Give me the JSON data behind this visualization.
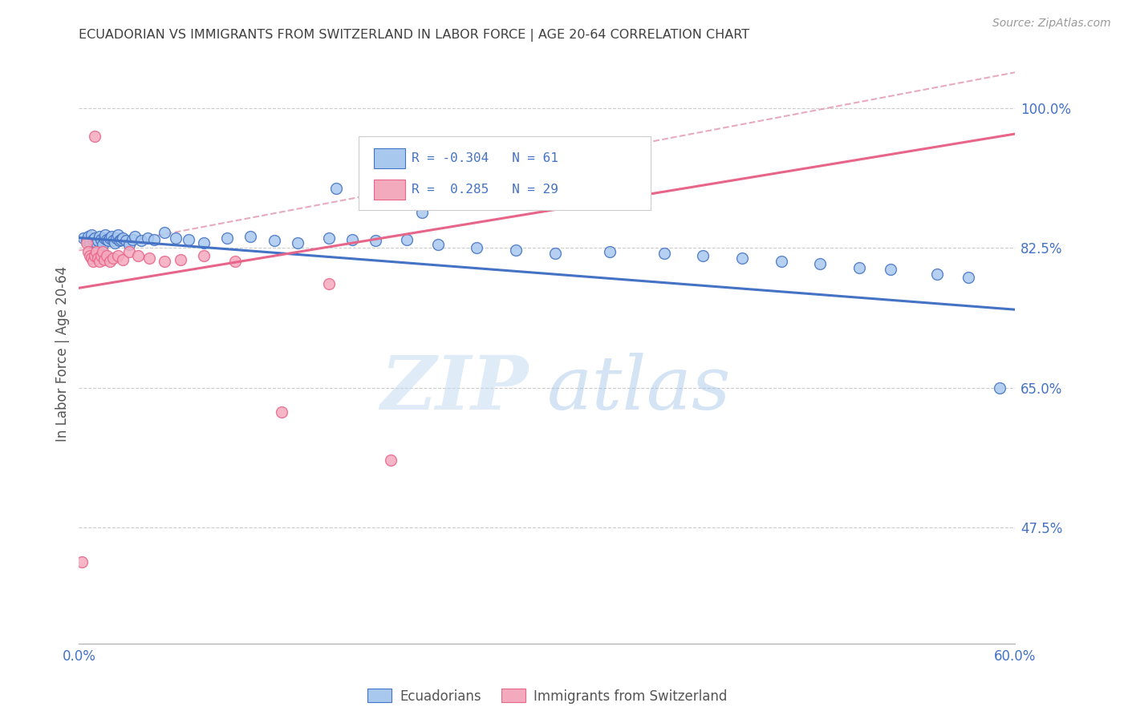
{
  "title": "ECUADORIAN VS IMMIGRANTS FROM SWITZERLAND IN LABOR FORCE | AGE 20-64 CORRELATION CHART",
  "source": "Source: ZipAtlas.com",
  "ylabel": "In Labor Force | Age 20-64",
  "xlim": [
    0.0,
    0.6
  ],
  "ylim": [
    0.33,
    1.055
  ],
  "yticks": [
    0.475,
    0.65,
    0.825,
    1.0
  ],
  "ytick_labels": [
    "47.5%",
    "65.0%",
    "82.5%",
    "100.0%"
  ],
  "xticks": [
    0.0,
    0.1,
    0.2,
    0.3,
    0.4,
    0.5,
    0.6
  ],
  "blue_R": "-0.304",
  "blue_N": "61",
  "pink_R": "0.285",
  "pink_N": "29",
  "blue_color": "#A8C8EE",
  "pink_color": "#F4AABD",
  "blue_line_color": "#4472C4",
  "pink_line_color": "#E8658A",
  "dash_line_color": "#E8AABD",
  "legend_label_blue": "Ecuadorians",
  "legend_label_pink": "Immigrants from Switzerland",
  "title_color": "#404040",
  "axis_color": "#4472C4",
  "watermark_zip": "ZIP",
  "watermark_atlas": "atlas",
  "blue_scatter_x": [
    0.003,
    0.005,
    0.006,
    0.007,
    0.008,
    0.009,
    0.01,
    0.011,
    0.012,
    0.013,
    0.014,
    0.015,
    0.016,
    0.017,
    0.018,
    0.019,
    0.02,
    0.021,
    0.022,
    0.023,
    0.024,
    0.025,
    0.026,
    0.027,
    0.028,
    0.03,
    0.032,
    0.034,
    0.036,
    0.04,
    0.044,
    0.048,
    0.055,
    0.062,
    0.07,
    0.08,
    0.095,
    0.11,
    0.125,
    0.14,
    0.16,
    0.175,
    0.19,
    0.21,
    0.23,
    0.255,
    0.28,
    0.305,
    0.34,
    0.375,
    0.4,
    0.425,
    0.45,
    0.475,
    0.5,
    0.52,
    0.55,
    0.57,
    0.59,
    0.22,
    0.165
  ],
  "blue_scatter_y": [
    0.838,
    0.835,
    0.84,
    0.833,
    0.842,
    0.836,
    0.838,
    0.832,
    0.835,
    0.84,
    0.836,
    0.83,
    0.838,
    0.842,
    0.836,
    0.835,
    0.838,
    0.84,
    0.835,
    0.832,
    0.838,
    0.842,
    0.835,
    0.836,
    0.838,
    0.835,
    0.83,
    0.836,
    0.84,
    0.835,
    0.838,
    0.836,
    0.845,
    0.838,
    0.836,
    0.832,
    0.838,
    0.84,
    0.835,
    0.832,
    0.838,
    0.836,
    0.835,
    0.836,
    0.83,
    0.825,
    0.822,
    0.818,
    0.82,
    0.818,
    0.815,
    0.812,
    0.808,
    0.805,
    0.8,
    0.798,
    0.792,
    0.788,
    0.65,
    0.87,
    0.9
  ],
  "pink_scatter_x": [
    0.002,
    0.005,
    0.006,
    0.007,
    0.008,
    0.009,
    0.01,
    0.011,
    0.012,
    0.013,
    0.014,
    0.015,
    0.016,
    0.018,
    0.02,
    0.022,
    0.025,
    0.028,
    0.032,
    0.038,
    0.045,
    0.055,
    0.065,
    0.08,
    0.1,
    0.13,
    0.16,
    0.2,
    0.01
  ],
  "pink_scatter_y": [
    0.432,
    0.832,
    0.82,
    0.815,
    0.812,
    0.808,
    0.815,
    0.82,
    0.812,
    0.808,
    0.815,
    0.82,
    0.81,
    0.815,
    0.808,
    0.812,
    0.815,
    0.81,
    0.82,
    0.815,
    0.812,
    0.808,
    0.81,
    0.815,
    0.808,
    0.62,
    0.78,
    0.56,
    0.965
  ],
  "blue_trend_x": [
    0.0,
    0.6
  ],
  "blue_trend_y": [
    0.838,
    0.748
  ],
  "pink_trend_x": [
    0.0,
    0.6
  ],
  "pink_trend_y": [
    0.775,
    0.968
  ],
  "dash_trend_x": [
    0.0,
    0.6
  ],
  "dash_trend_y": [
    0.822,
    1.045
  ]
}
